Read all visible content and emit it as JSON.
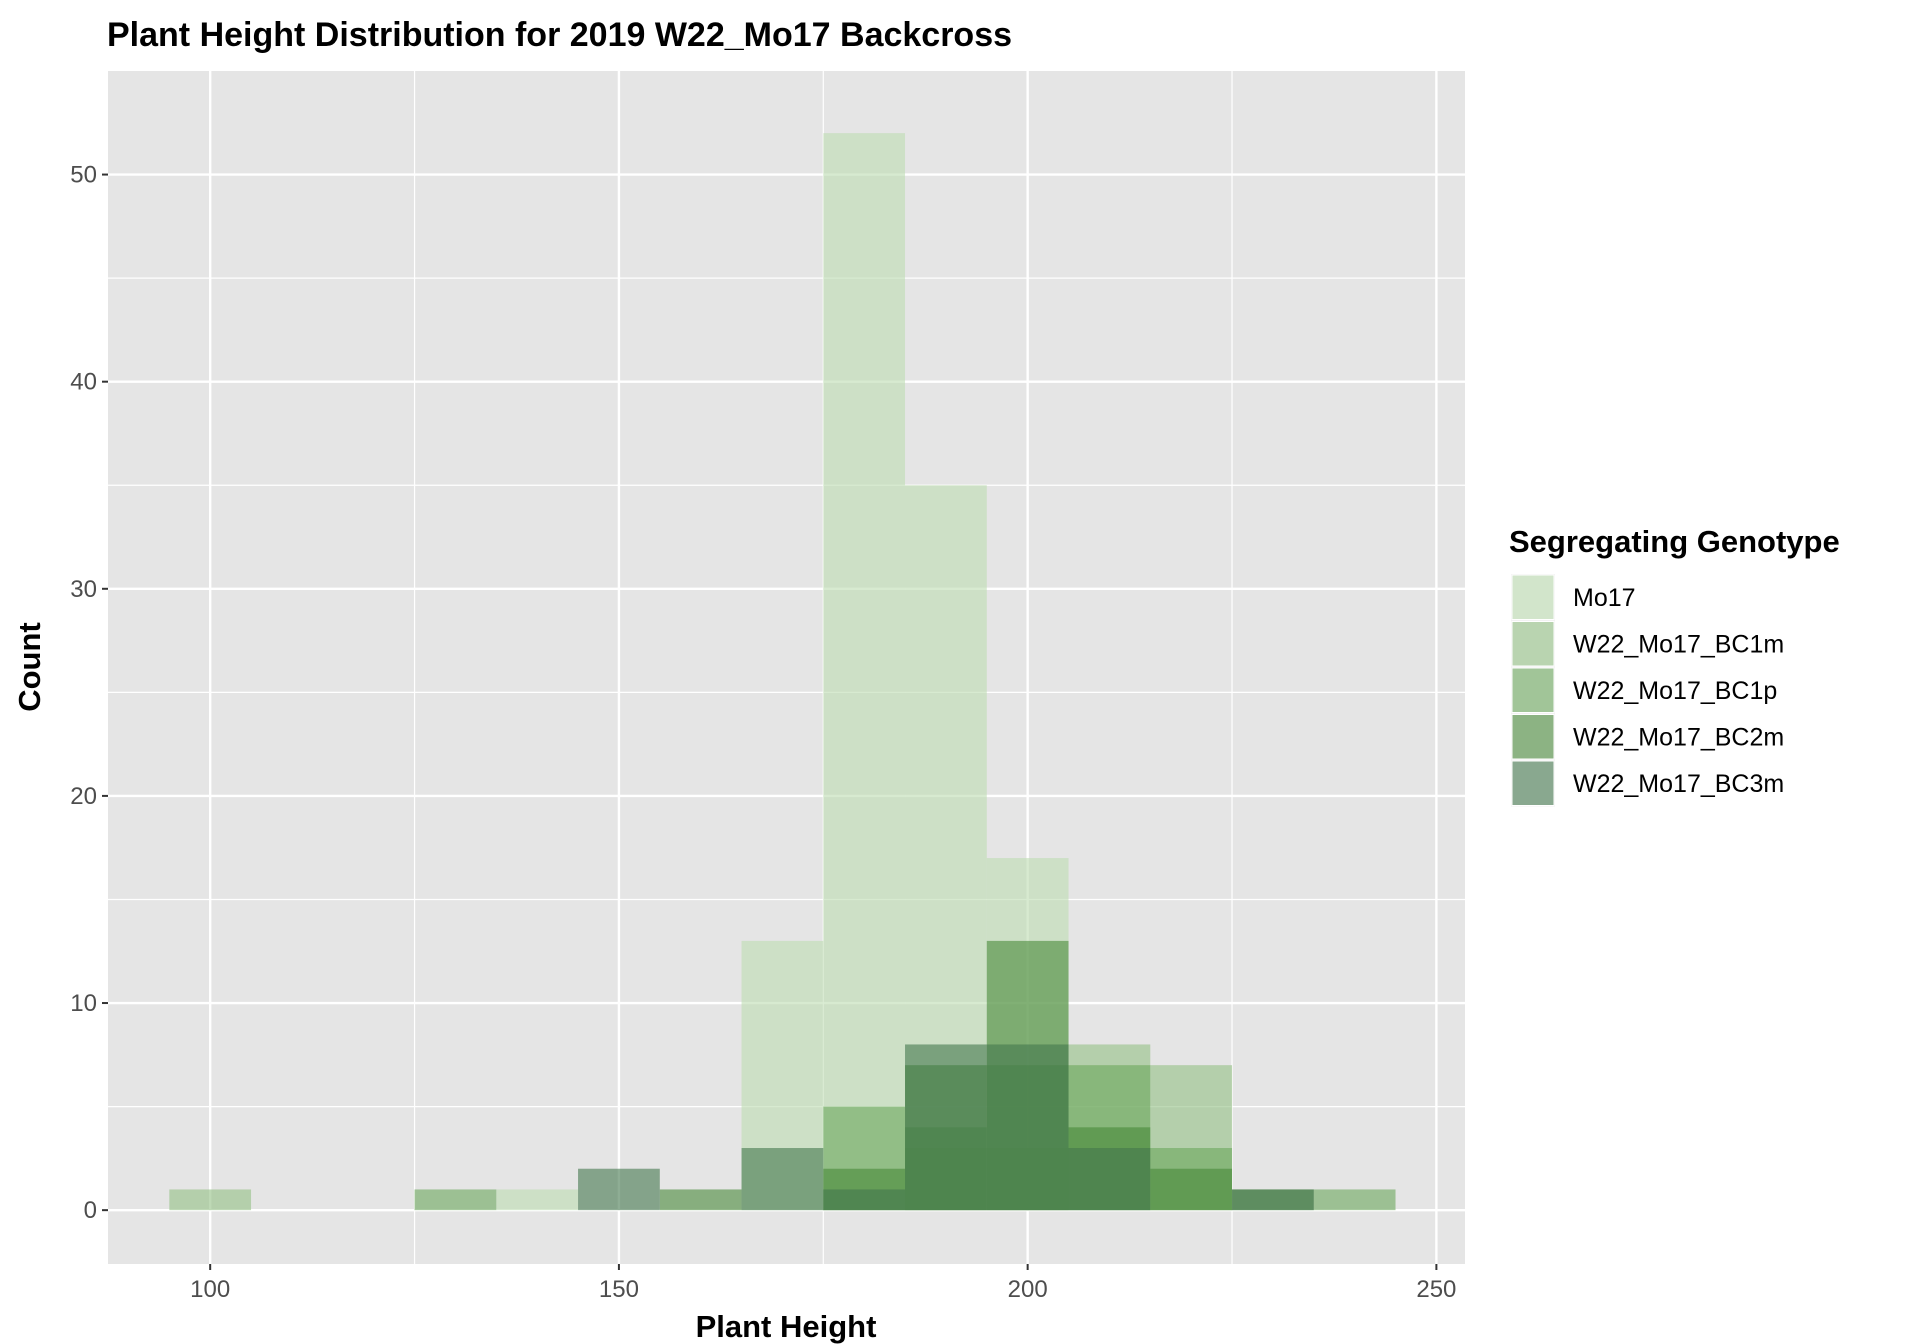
{
  "chart_data": {
    "type": "bar",
    "title": "Plant Height Distribution for 2019 W22_Mo17 Backcross",
    "xlabel": "Plant Height",
    "ylabel": "Count",
    "xlim": [
      87.5,
      253.5
    ],
    "ylim": [
      -2.6,
      55
    ],
    "xticks": [
      100,
      150,
      200,
      250
    ],
    "yticks": [
      0,
      10,
      20,
      30,
      40,
      50
    ],
    "bin_width": 10,
    "grid": true,
    "legend": {
      "title": "Segregating Genotype",
      "position": "right"
    },
    "series": [
      {
        "name": "Mo17",
        "color": "#bddcb1",
        "bins": {
          "140": 1,
          "170": 13,
          "180": 52,
          "190": 35,
          "200": 17
        }
      },
      {
        "name": "W22_Mo17_BC1m",
        "color": "#92c084",
        "bins": {
          "100": 1,
          "190": 3,
          "200": 3,
          "210": 8,
          "220": 7
        }
      },
      {
        "name": "W22_Mo17_BC1p",
        "color": "#6ba65c",
        "bins": {
          "130": 1,
          "180": 5,
          "190": 4,
          "200": 7,
          "210": 7,
          "220": 3,
          "240": 1
        }
      },
      {
        "name": "W22_Mo17_BC2m",
        "color": "#478839",
        "bins": {
          "160": 1,
          "180": 2,
          "190": 7,
          "200": 13,
          "210": 4,
          "220": 2,
          "230": 1
        }
      },
      {
        "name": "W22_Mo17_BC3m",
        "color": "#42774d",
        "bins": {
          "150": 2,
          "170": 3,
          "180": 1,
          "190": 8,
          "200": 8,
          "210": 3,
          "230": 1
        }
      }
    ],
    "alpha": 0.6
  }
}
